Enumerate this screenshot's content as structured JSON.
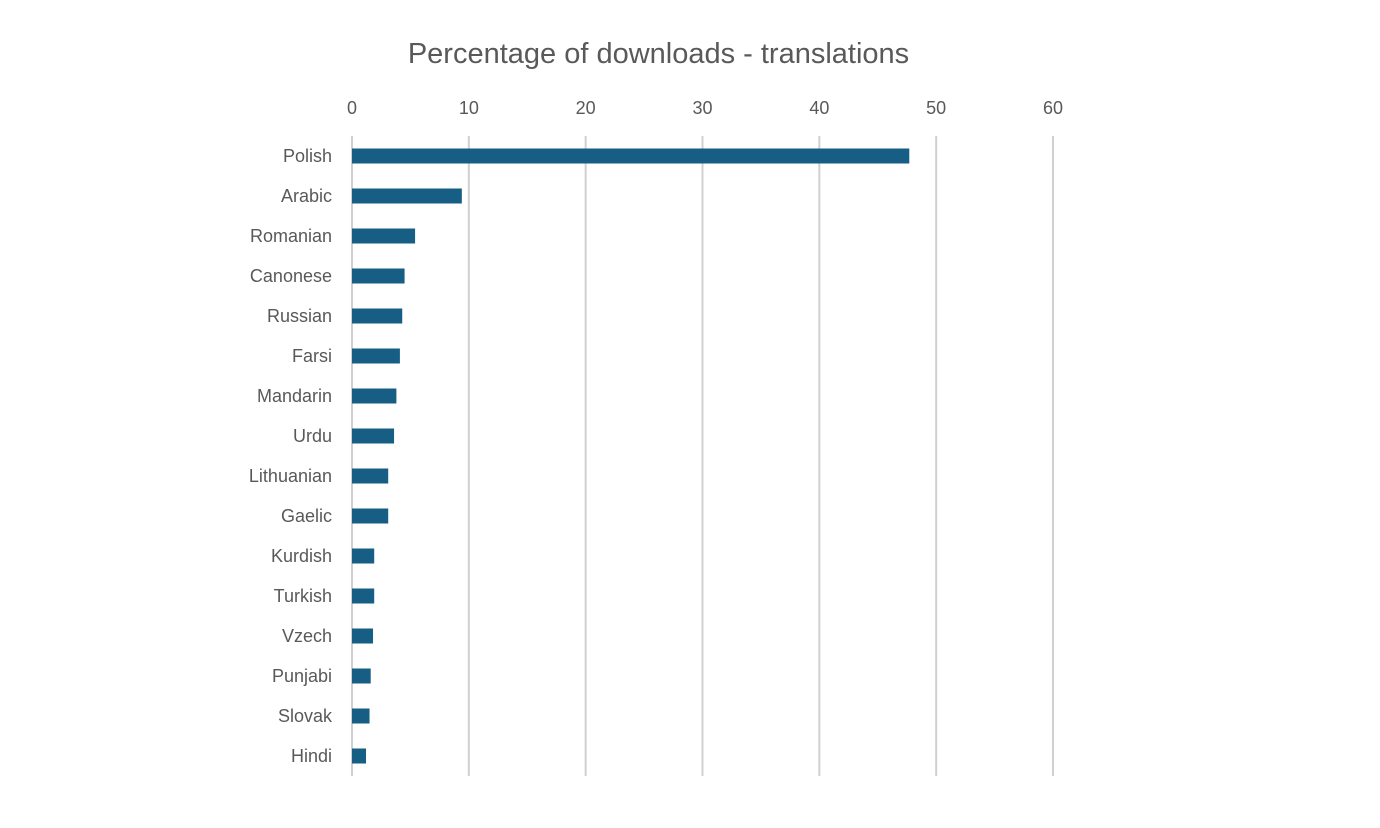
{
  "chart_data": {
    "type": "bar",
    "orientation": "horizontal",
    "title": "Percentage of downloads - translations",
    "xlabel": "",
    "ylabel": "",
    "xlim": [
      0,
      60
    ],
    "x_ticks": [
      0,
      10,
      20,
      30,
      40,
      50,
      60
    ],
    "x_axis_position": "top",
    "grid": true,
    "legend": "none",
    "bar_color": "#165e83",
    "categories": [
      "Polish",
      "Arabic",
      "Romanian",
      "Canonese",
      "Russian",
      "Farsi",
      "Mandarin",
      "Urdu",
      "Lithuanian",
      "Gaelic",
      "Kurdish",
      "Turkish",
      "Vzech",
      "Punjabi",
      "Slovak",
      "Hindi"
    ],
    "values": [
      47.7,
      9.4,
      5.4,
      4.5,
      4.3,
      4.1,
      3.8,
      3.6,
      3.1,
      3.1,
      1.9,
      1.9,
      1.8,
      1.6,
      1.5,
      1.2
    ]
  }
}
